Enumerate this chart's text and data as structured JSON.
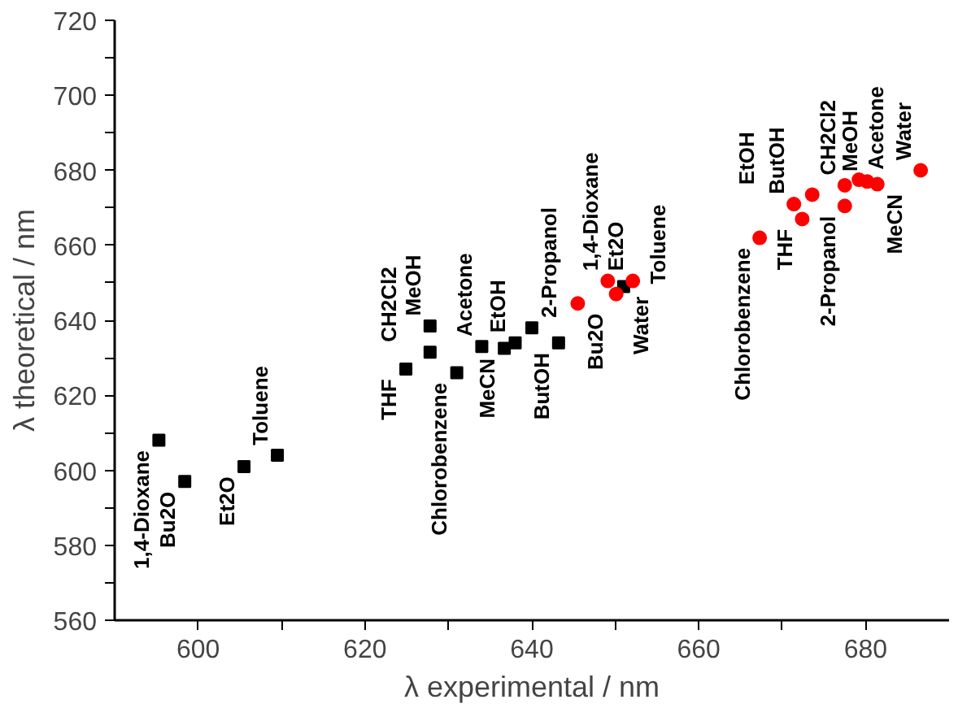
{
  "chart_data": {
    "type": "scatter",
    "xlabel": "λ experimental / nm",
    "ylabel": "λ theoretical / nm",
    "xlim": [
      590,
      690
    ],
    "ylim": [
      560,
      720
    ],
    "xticks": [
      600,
      {
        "value": 610,
        "label": null
      },
      620,
      {
        "value": 630,
        "label": null
      },
      640,
      {
        "value": 650,
        "label": null
      },
      660,
      {
        "value": 670,
        "label": null
      },
      680
    ],
    "yticks": [
      560,
      {
        "value": 570,
        "label": null
      },
      580,
      {
        "value": 590,
        "label": null
      },
      600,
      {
        "value": 610,
        "label": null
      },
      620,
      {
        "value": 630,
        "label": null
      },
      640,
      {
        "value": 650,
        "label": null
      },
      660,
      {
        "value": 670,
        "label": null
      },
      680,
      {
        "value": 690,
        "label": null
      },
      700,
      {
        "value": 710,
        "label": null
      },
      720
    ],
    "series": [
      {
        "color": "#000000",
        "marker": "square",
        "x": [
          595.3,
          598.4,
          605.5,
          609.5,
          624.9,
          627.8,
          627.8,
          631,
          634,
          636.7,
          638,
          640,
          643.2,
          651
        ],
        "values": [
          608,
          597,
          601,
          604,
          627,
          631.5,
          638.5,
          626,
          633,
          632.5,
          634,
          638,
          634,
          649
        ]
      },
      {
        "color": "#ff0000",
        "marker": "circle",
        "x": [
          645.5,
          649.1,
          650.1,
          652.1,
          667.3,
          671.4,
          672.4,
          673.6,
          677.5,
          677.5,
          679.2,
          680.2,
          681.4,
          686.6
        ],
        "values": [
          644.5,
          650.5,
          647,
          650.5,
          662,
          671,
          667,
          673.5,
          676,
          670.5,
          677.5,
          677,
          676.3,
          680
        ]
      }
    ],
    "annotations": [
      {
        "text": "1,4-Dioxane",
        "x": 595.3,
        "y": 608
      },
      {
        "text": "Bu2O",
        "x": 598.4,
        "y": 597
      },
      {
        "text": "Et2O",
        "x": 605.5,
        "y": 601
      },
      {
        "text": "Toluene",
        "x": 609.5,
        "y": 604
      },
      {
        "text": "THF",
        "x": 624.9,
        "y": 627
      },
      {
        "text": "CH2Cl2",
        "x": 627.8,
        "y": 631.5
      },
      {
        "text": "MeOH",
        "x": 627.8,
        "y": 638.5
      },
      {
        "text": "Chlorobenzene",
        "x": 631,
        "y": 626
      },
      {
        "text": "Acetone",
        "x": 634,
        "y": 633
      },
      {
        "text": "MeCN",
        "x": 636.7,
        "y": 632.5
      },
      {
        "text": "EtOH",
        "x": 638,
        "y": 634
      },
      {
        "text": "2-Propanol",
        "x": 640,
        "y": 638
      },
      {
        "text": "ButOH",
        "x": 643.2,
        "y": 634
      },
      {
        "text": "Water",
        "x": 651,
        "y": 649
      },
      {
        "text": "Bu2O",
        "x": 645.5,
        "y": 644.5
      },
      {
        "text": "1,4-Dioxane",
        "x": 649.1,
        "y": 650.5
      },
      {
        "text": "Toluene",
        "x": 650.1,
        "y": 647
      },
      {
        "text": "Et2O",
        "x": 652.1,
        "y": 650.5
      },
      {
        "text": "Chlorobenzene",
        "x": 667.3,
        "y": 662
      },
      {
        "text": "ButOH",
        "x": 671.4,
        "y": 671
      },
      {
        "text": "THF",
        "x": 672.4,
        "y": 667
      },
      {
        "text": "EtOH",
        "x": 673.6,
        "y": 673.5
      },
      {
        "text": "CH2Cl2",
        "x": 677.5,
        "y": 676
      },
      {
        "text": "2-Propanol",
        "x": 677.5,
        "y": 670.5
      },
      {
        "text": "Acetone",
        "x": 679.2,
        "y": 677.5
      },
      {
        "text": "MeOH",
        "x": 680.2,
        "y": 677
      },
      {
        "text": "MeCN",
        "x": 681.4,
        "y": 676.3
      },
      {
        "text": "Water",
        "x": 686.6,
        "y": 680
      }
    ]
  }
}
